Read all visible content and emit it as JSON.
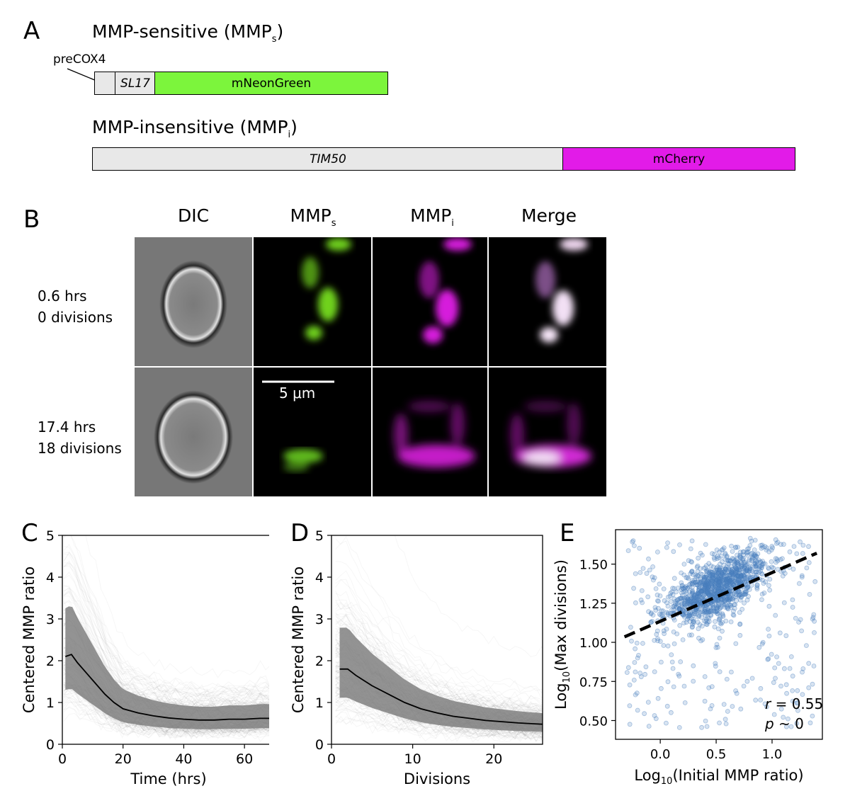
{
  "panels": {
    "A": {
      "letter": "A",
      "construct1": {
        "title": "MMP-sensitive (MMP",
        "title_sub": "s",
        "title_close": ")",
        "callout": "preCOX4",
        "segments": [
          "SL17",
          "mNeonGreen"
        ],
        "colors": {
          "leader": "#e8e8e8",
          "fp": "#7cf53c"
        }
      },
      "construct2": {
        "title": "MMP-insensitive (MMP",
        "title_sub": "i",
        "title_close": ")",
        "segments": [
          "TIM50",
          "mCherry"
        ],
        "colors": {
          "leader": "#e8e8e8",
          "fp": "#e21be8"
        }
      }
    },
    "B": {
      "letter": "B",
      "columns": [
        "DIC",
        "MMP",
        "MMP",
        "Merge"
      ],
      "column_subs": [
        "",
        "s",
        "i",
        ""
      ],
      "rows": [
        {
          "line1": "0.6 hrs",
          "line2": "0 divisions"
        },
        {
          "line1": "17.4 hrs",
          "line2": "18 divisions"
        }
      ],
      "scale_bar": "5 μm"
    },
    "C": {
      "letter": "C"
    },
    "D": {
      "letter": "D"
    },
    "E": {
      "letter": "E",
      "r_label": "r",
      "r_value": " = 0.55",
      "p_label": "p",
      "p_value": " ~ 0"
    }
  },
  "chart_data": [
    {
      "id": "C",
      "type": "line",
      "xlabel": "Time (hrs)",
      "ylabel": "Centered MMP ratio",
      "xlim": [
        0,
        70
      ],
      "ylim": [
        0,
        5
      ],
      "xticks": [
        0,
        20,
        40,
        60
      ],
      "yticks": [
        0,
        1,
        2,
        3,
        4,
        5
      ],
      "median": {
        "x": [
          1,
          3,
          5,
          8,
          11,
          14,
          17,
          20,
          25,
          30,
          35,
          40,
          45,
          50,
          55,
          60,
          65,
          70
        ],
        "y": [
          2.1,
          2.15,
          1.95,
          1.7,
          1.45,
          1.2,
          1.0,
          0.85,
          0.75,
          0.68,
          0.63,
          0.6,
          0.58,
          0.58,
          0.6,
          0.6,
          0.62,
          0.62
        ]
      },
      "band_color": "#808080",
      "line_color": "#000000"
    },
    {
      "id": "D",
      "type": "line",
      "xlabel": "Divisions",
      "ylabel": "Centered MMP ratio",
      "xlim": [
        0,
        26
      ],
      "ylim": [
        0,
        5
      ],
      "xticks": [
        0,
        10,
        20
      ],
      "yticks": [
        0,
        1,
        2,
        3,
        4,
        5
      ],
      "median": {
        "x": [
          1,
          2,
          3,
          5,
          7,
          9,
          11,
          13,
          15,
          17,
          19,
          21,
          23,
          25,
          26
        ],
        "y": [
          1.8,
          1.8,
          1.65,
          1.4,
          1.2,
          1.0,
          0.85,
          0.75,
          0.67,
          0.62,
          0.57,
          0.54,
          0.51,
          0.49,
          0.48
        ]
      },
      "band_color": "#808080",
      "line_color": "#000000"
    },
    {
      "id": "E",
      "type": "scatter",
      "xlabel": "Log10(Initial MMP ratio)",
      "ylabel": "Log10(Max divisions)",
      "xlim": [
        -0.4,
        1.45
      ],
      "ylim": [
        0.38,
        1.72
      ],
      "xticks": [
        0.0,
        0.5,
        1.0
      ],
      "xtick_labels": [
        "0.0",
        "0.5",
        "1.0"
      ],
      "yticks": [
        0.5,
        0.75,
        1.0,
        1.25,
        1.5
      ],
      "ytick_labels": [
        "0.50",
        "0.75",
        "1.00",
        "1.25",
        "1.50"
      ],
      "point_color": "#4a7fbd",
      "fit_line": {
        "x": [
          -0.32,
          1.4
        ],
        "y": [
          1.035,
          1.57
        ],
        "style": "dashed",
        "color": "#000000"
      },
      "cloud": {
        "center_x": 0.5,
        "center_y": 1.3,
        "r": 0.55
      }
    }
  ]
}
